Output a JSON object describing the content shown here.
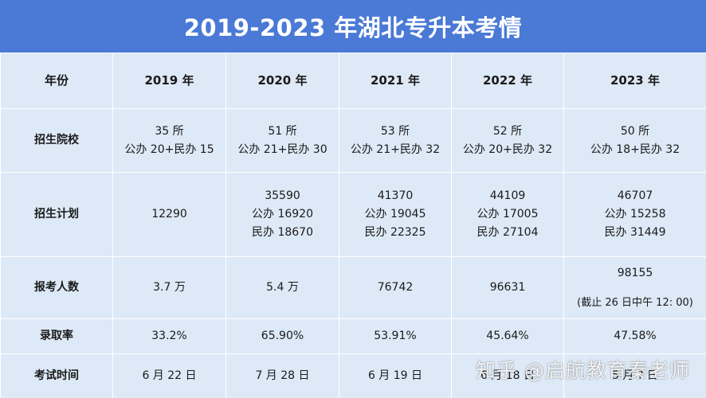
{
  "title": "2019-2023 年湖北专升本考情",
  "header": {
    "label": "年份",
    "years": [
      "2019 年",
      "2020 年",
      "2021 年",
      "2022 年",
      "2023 年"
    ]
  },
  "rows": [
    {
      "label": "招生院校",
      "cells": [
        [
          "35 所",
          "公办 20+民办 15"
        ],
        [
          "51 所",
          "公办 21+民办 30"
        ],
        [
          "53 所",
          "公办 21+民办 32"
        ],
        [
          "52 所",
          "公办 20+民办 32"
        ],
        [
          "50 所",
          "公办 18+民办 32"
        ]
      ]
    },
    {
      "label": "招生计划",
      "cells": [
        [
          "12290"
        ],
        [
          "35590",
          "公办 16920",
          "民办 18670"
        ],
        [
          "41370",
          "公办 19045",
          "民办 22325"
        ],
        [
          "44109",
          "公办 17005",
          "民办 27104"
        ],
        [
          "46707",
          "公办 15258",
          "民办 31449"
        ]
      ]
    },
    {
      "label": "报考人数",
      "cells": [
        [
          "3.7 万"
        ],
        [
          "5.4 万"
        ],
        [
          "76742"
        ],
        [
          "96631"
        ],
        [
          "98155"
        ]
      ],
      "note_2023": "(截止 26 日中午 12: 00)"
    },
    {
      "label": "录取率",
      "cells": [
        [
          "33.2%"
        ],
        [
          "65.90%"
        ],
        [
          "53.91%"
        ],
        [
          "45.64%"
        ],
        [
          "47.58%"
        ]
      ]
    },
    {
      "label": "考试时间",
      "cells": [
        [
          "6 月 22 日"
        ],
        [
          "7 月 28 日"
        ],
        [
          "6 月 19 日"
        ],
        [
          "6 月 18 日"
        ],
        [
          "5 月 ? 日"
        ]
      ]
    }
  ],
  "watermark": "知乎 @启航教育秦老师"
}
